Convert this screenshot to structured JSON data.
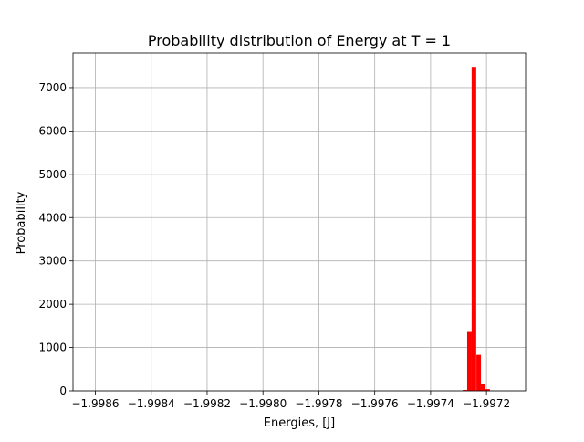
{
  "chart_data": {
    "type": "bar",
    "title": "Probability distribution of Energy at T = 1",
    "xlabel": "Energies, [J]",
    "ylabel": "Probability",
    "xlim": [
      -1.99868,
      -1.99706
    ],
    "ylim": [
      0,
      7800
    ],
    "xticks": [
      -1.9986,
      -1.9984,
      -1.9982,
      -1.998,
      -1.9978,
      -1.9976,
      -1.9974,
      -1.9972
    ],
    "xtick_labels": [
      "−1.9986",
      "−1.9984",
      "−1.9982",
      "−1.9980",
      "−1.9978",
      "−1.9976",
      "−1.9974",
      "−1.9972"
    ],
    "yticks": [
      0,
      1000,
      2000,
      3000,
      4000,
      5000,
      6000,
      7000
    ],
    "ytick_labels": [
      "0",
      "1000",
      "2000",
      "3000",
      "4000",
      "5000",
      "6000",
      "7000"
    ],
    "grid": true,
    "bar_color": "#ff0000",
    "bin_width": 1.63e-05,
    "bins": [
      {
        "x": -1.997277,
        "value": 20
      },
      {
        "x": -1.997261,
        "value": 1380
      },
      {
        "x": -1.997245,
        "value": 7480
      },
      {
        "x": -1.997228,
        "value": 830
      },
      {
        "x": -1.997212,
        "value": 150
      },
      {
        "x": -1.997196,
        "value": 40
      }
    ]
  }
}
